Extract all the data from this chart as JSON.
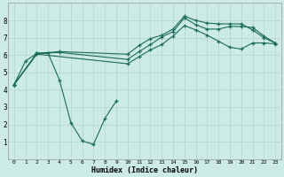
{
  "background_color": "#cceae6",
  "grid_color": "#b8d8d4",
  "line_color": "#1a6b5a",
  "xlabel": "Humidex (Indice chaleur)",
  "xlim": [
    -0.5,
    23.5
  ],
  "ylim": [
    0,
    9
  ],
  "xticks": [
    0,
    1,
    2,
    3,
    4,
    5,
    6,
    7,
    8,
    9,
    10,
    11,
    12,
    13,
    14,
    15,
    16,
    17,
    18,
    19,
    20,
    21,
    22,
    23
  ],
  "yticks": [
    1,
    2,
    3,
    4,
    5,
    6,
    7,
    8
  ],
  "figsize": [
    3.2,
    2.0
  ],
  "dpi": 100,
  "line1_x": [
    0,
    1,
    2,
    3,
    4,
    5,
    6,
    7,
    8,
    9
  ],
  "line1_y": [
    4.3,
    5.65,
    6.1,
    6.1,
    4.55,
    2.1,
    1.05,
    0.85,
    2.35,
    3.35
  ],
  "line2_x": [
    0,
    2,
    4,
    10,
    11,
    12,
    13,
    14,
    15,
    16,
    17,
    18,
    19,
    20,
    21,
    22,
    23
  ],
  "line2_y": [
    4.3,
    6.1,
    6.2,
    6.05,
    6.55,
    6.95,
    7.15,
    7.5,
    8.25,
    8.0,
    7.85,
    7.8,
    7.8,
    7.8,
    7.45,
    7.0,
    6.7
  ],
  "line3_x": [
    0,
    2,
    4,
    10,
    11,
    12,
    13,
    14,
    15,
    16,
    17,
    18,
    19,
    20,
    21,
    22,
    23
  ],
  "line3_y": [
    4.3,
    6.1,
    6.15,
    5.75,
    6.2,
    6.6,
    7.05,
    7.35,
    8.15,
    7.75,
    7.5,
    7.5,
    7.65,
    7.65,
    7.6,
    7.1,
    6.7
  ],
  "line4_x": [
    0,
    2,
    10,
    11,
    12,
    13,
    14,
    15,
    16,
    17,
    18,
    19,
    20,
    21,
    22,
    23
  ],
  "line4_y": [
    4.3,
    6.05,
    5.5,
    5.9,
    6.3,
    6.6,
    7.1,
    7.7,
    7.45,
    7.15,
    6.8,
    6.45,
    6.35,
    6.7,
    6.7,
    6.65
  ]
}
